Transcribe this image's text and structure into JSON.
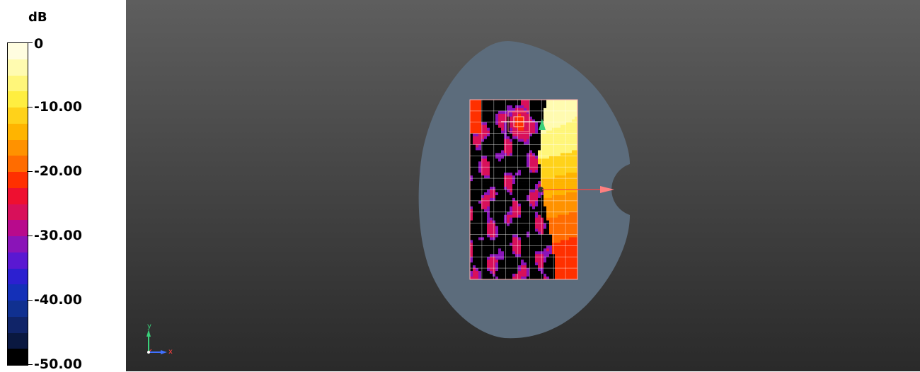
{
  "legend": {
    "unit": "dB",
    "ticks": [
      "0",
      "-10.00",
      "-20.00",
      "-30.00",
      "-40.00",
      "-50.00"
    ],
    "colors": [
      "#fffde0",
      "#fffbb0",
      "#fff67a",
      "#ffee40",
      "#ffd21a",
      "#ffb400",
      "#ff9200",
      "#ff6c00",
      "#ff3000",
      "#ee1030",
      "#d8105a",
      "#b80a8c",
      "#8a14b8",
      "#5a18d2",
      "#2c20d0",
      "#1430b8",
      "#103090",
      "#102468",
      "#0a1840",
      "#000000"
    ]
  },
  "viewport": {
    "background_top": "#5e5e5e",
    "background_bottom": "#2a2a2a",
    "phantom_color": "#5c6c7c"
  },
  "axes": {
    "y_label": "y",
    "x_label": "x"
  }
}
